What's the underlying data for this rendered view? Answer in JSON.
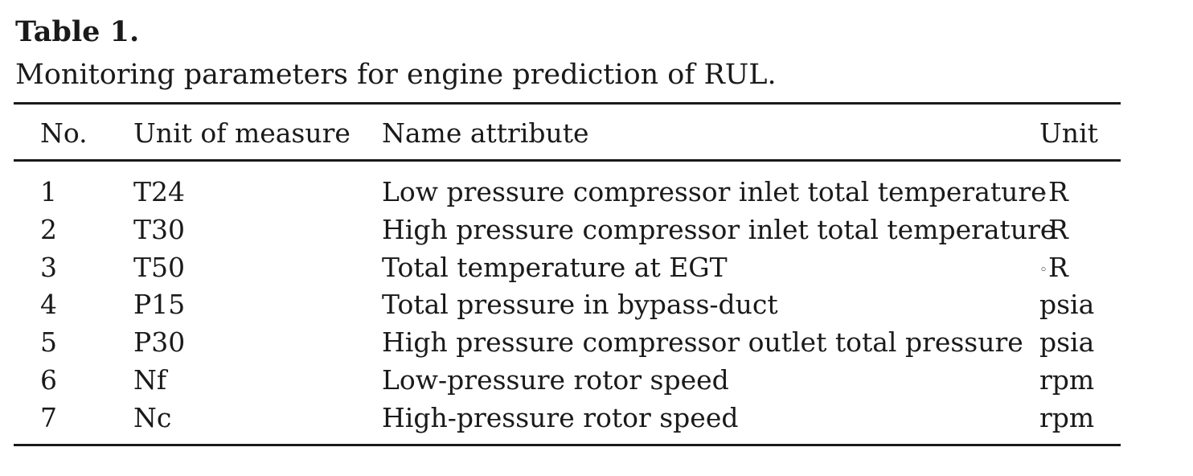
{
  "caption": {
    "label": "Table 1.",
    "text": "Monitoring parameters for engine prediction of RUL."
  },
  "table": {
    "columns": [
      "No.",
      "Unit of measure",
      "Name attribute",
      "Unit"
    ],
    "rows": [
      {
        "no": "1",
        "measure": "T24",
        "name": "Low pressure compressor inlet total temperature",
        "unit": "◦R"
      },
      {
        "no": "2",
        "measure": "T30",
        "name": "High pressure compressor inlet total temperature",
        "unit": "◦R"
      },
      {
        "no": "3",
        "measure": "T50",
        "name": "Total temperature at EGT",
        "unit": "◦R"
      },
      {
        "no": "4",
        "measure": "P15",
        "name": "Total pressure in bypass-duct",
        "unit": "psia"
      },
      {
        "no": "5",
        "measure": "P30",
        "name": "High pressure compressor outlet total pressure",
        "unit": "psia"
      },
      {
        "no": "6",
        "measure": "Nf",
        "name": "Low-pressure rotor speed",
        "unit": "rpm"
      },
      {
        "no": "7",
        "measure": "Nc",
        "name": "High-pressure rotor speed",
        "unit": "rpm"
      }
    ]
  }
}
